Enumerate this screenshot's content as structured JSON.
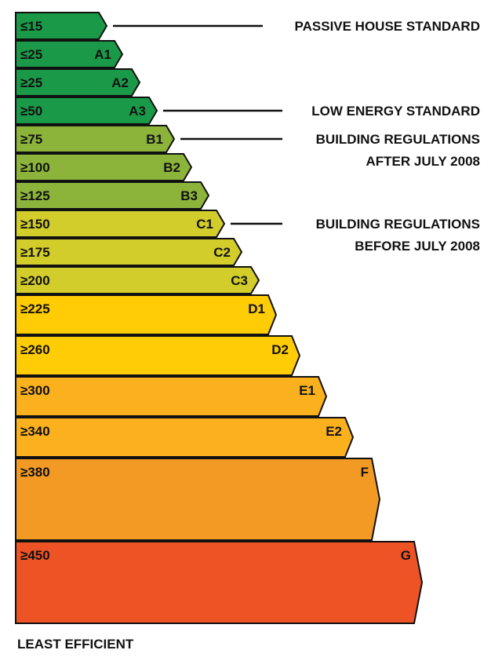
{
  "bands": [
    {
      "label": "≤15",
      "grade": "",
      "color": "#1a9a48"
    },
    {
      "label": "≤25",
      "grade": "A1",
      "color": "#1a9a48"
    },
    {
      "label": "≥25",
      "grade": "A2",
      "color": "#1a9a48"
    },
    {
      "label": "≥50",
      "grade": "A3",
      "color": "#1a9a48"
    },
    {
      "label": "≥75",
      "grade": "B1",
      "color": "#8cb43a"
    },
    {
      "label": "≥100",
      "grade": "B2",
      "color": "#8cb43a"
    },
    {
      "label": "≥125",
      "grade": "B3",
      "color": "#8cb43a"
    },
    {
      "label": "≥150",
      "grade": "C1",
      "color": "#d2cd2a"
    },
    {
      "label": "≥175",
      "grade": "C2",
      "color": "#d2cd2a"
    },
    {
      "label": "≥200",
      "grade": "C3",
      "color": "#d2cd2a"
    },
    {
      "label": "≥225",
      "grade": "D1",
      "color": "#ffcc05"
    },
    {
      "label": "≥260",
      "grade": "D2",
      "color": "#ffcc05"
    },
    {
      "label": "≥300",
      "grade": "E1",
      "color": "#fbb01e"
    },
    {
      "label": "≥340",
      "grade": "E2",
      "color": "#fbb01e"
    },
    {
      "label": "≥380",
      "grade": "F",
      "color": "#f39a24"
    },
    {
      "label": "≥450",
      "grade": "G",
      "color": "#ee5325"
    }
  ],
  "standards": [
    {
      "band": 0,
      "lines": [
        "PASSIVE HOUSE STANDARD"
      ]
    },
    {
      "band": 3,
      "lines": [
        "LOW ENERGY STANDARD"
      ]
    },
    {
      "band": 4,
      "lines": [
        "BUILDING REGULATIONS",
        "AFTER JULY 2008"
      ]
    },
    {
      "band": 7,
      "lines": [
        "BUILDING REGULATIONS",
        "BEFORE JULY 2008"
      ]
    }
  ],
  "footer": "LEAST EFFICIENT"
}
